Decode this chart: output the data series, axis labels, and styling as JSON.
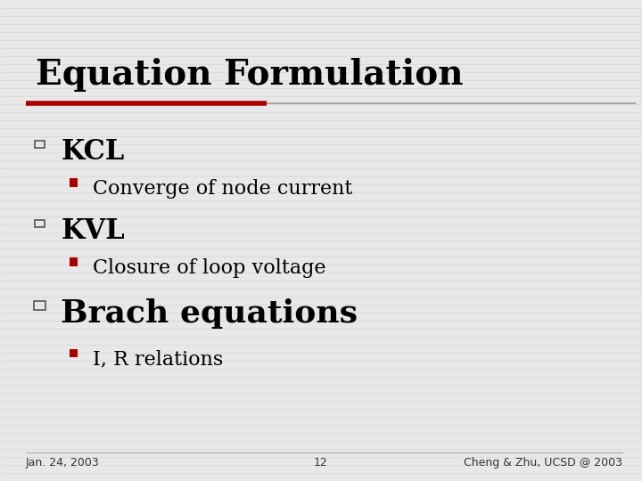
{
  "title": "Equation Formulation",
  "background_color": "#e8e8e8",
  "title_color": "#000000",
  "title_fontsize": 28,
  "title_font": "serif",
  "title_bold": true,
  "divider_left_color": "#aa0000",
  "divider_right_color": "#999999",
  "divider_split": 0.415,
  "bullet1_text": "KCL",
  "bullet1_fontsize": 22,
  "bullet1_font": "serif",
  "sub1_text": "Converge of node current",
  "sub1_fontsize": 16,
  "bullet2_text": "KVL",
  "bullet2_fontsize": 22,
  "bullet2_font": "serif",
  "sub2_text": "Closure of loop voltage",
  "sub2_fontsize": 16,
  "bullet3_text": "Brach equations",
  "bullet3_fontsize": 26,
  "bullet3_font": "serif",
  "sub3_text": "I, R relations",
  "sub3_fontsize": 16,
  "bullet_color": "#000000",
  "sub_color": "#000000",
  "square_bullet_color": "#555555",
  "red_square_color": "#aa0000",
  "footer_left": "Jan. 24, 2003",
  "footer_center": "12",
  "footer_right": "Cheng & Zhu, UCSD @ 2003",
  "footer_fontsize": 9,
  "footer_color": "#333333",
  "stripe_color": "#d8d8d8",
  "stripe_linewidth": 0.5
}
